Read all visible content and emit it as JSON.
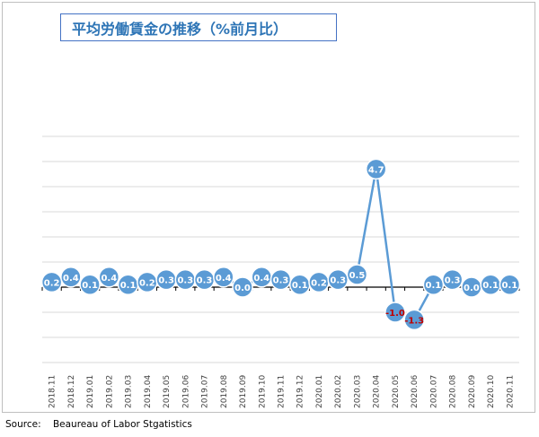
{
  "chart_data": {
    "type": "line",
    "title": "平均労働賃金の推移（%前月比）",
    "categories": [
      "2018.11",
      "2018.12",
      "2019.01",
      "2019.02",
      "2019.03",
      "2019.04",
      "2019.05",
      "2019.06",
      "2019.07",
      "2019.08",
      "2019.09",
      "2019.10",
      "2019.11",
      "2019.12",
      "2020.01",
      "2020.02",
      "2020.03",
      "2020.04",
      "2020.05",
      "2020.06",
      "2020.07",
      "2020.08",
      "2020.09",
      "2020.10",
      "2020.11"
    ],
    "values": [
      0.2,
      0.4,
      0.1,
      0.4,
      0.1,
      0.2,
      0.3,
      0.3,
      0.3,
      0.4,
      0.0,
      0.4,
      0.3,
      0.1,
      0.2,
      0.3,
      0.5,
      4.7,
      -1.0,
      -1.3,
      0.1,
      0.3,
      0.0,
      0.1,
      0.1
    ],
    "data_labels": [
      "0.2",
      "0.4",
      "0.1",
      "0.4",
      "0.1",
      "0.2",
      "0.3",
      "0.3",
      "0.3",
      "0.4",
      "0.0",
      "0.4",
      "0.3",
      "0.1",
      "0.2",
      "0.3",
      "0.5",
      "4.7",
      "-1.0",
      "-1.3",
      "0.1",
      "0.3",
      "0.0",
      "0.1",
      "0.1"
    ],
    "ylim": [
      -3,
      6
    ],
    "grid": true,
    "colors": {
      "line": "#5b9bd5",
      "marker": "#5b9bd5",
      "label": "#ffffff",
      "negative_label": "#c00000",
      "grid": "#d9d9d9",
      "axis": "#000000"
    }
  },
  "source_text": "Source:    Beaureau of Labor Stgatistics"
}
